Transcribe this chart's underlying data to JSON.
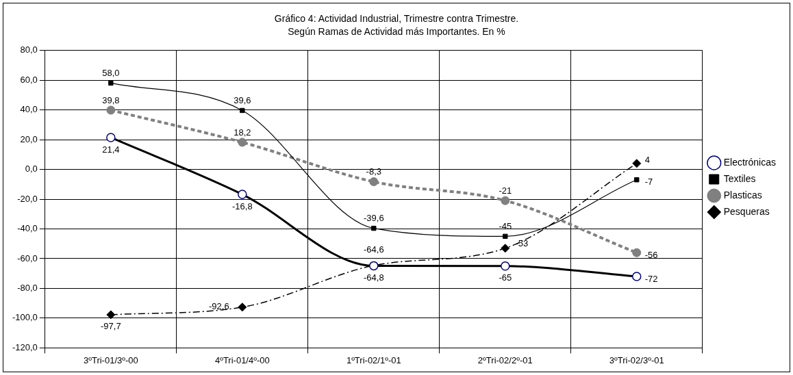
{
  "chart_data": {
    "type": "line",
    "title": "Gráfico 4: Actividad Industrial, Trimestre contra Trimestre.",
    "subtitle": "Según Ramas de Actividad más Importantes. En %",
    "categories": [
      "3ºTri-01/3º-00",
      "4ºTri-01/4º-00",
      "1ºTri-02/1º-01",
      "2ºTri-02/2º-01",
      "3ºTri-02/3º-01"
    ],
    "ylim": [
      -120,
      80
    ],
    "yticks": [
      {
        "value": -120,
        "label": "-120,0"
      },
      {
        "value": -100,
        "label": "-100,0"
      },
      {
        "value": -80,
        "label": "-80,0"
      },
      {
        "value": -60,
        "label": "-60,0"
      },
      {
        "value": -40,
        "label": "-40,0"
      },
      {
        "value": -20,
        "label": "-20,0"
      },
      {
        "value": 0,
        "label": "0,0"
      },
      {
        "value": 20,
        "label": "20,0"
      },
      {
        "value": 40,
        "label": "40,0"
      },
      {
        "value": 60,
        "label": "60,0"
      },
      {
        "value": 80,
        "label": "80,0"
      }
    ],
    "grid": true,
    "legend": "right",
    "series": [
      {
        "name": "Electrónicas",
        "color": "#000080",
        "marker": "circle",
        "line_style": "solid",
        "values": [
          21.4,
          -16.8,
          -64.8,
          -65,
          -72
        ],
        "value_labels": [
          "21,4",
          "-16,8",
          "-64,8",
          "-65",
          "-72"
        ]
      },
      {
        "name": "Textiles",
        "color": "#000000",
        "marker": "square",
        "line_style": "solid",
        "values": [
          58.0,
          39.6,
          -39.6,
          -45,
          -7
        ],
        "value_labels": [
          "58,0",
          "39,6",
          "-39,6",
          "-45",
          "-7"
        ]
      },
      {
        "name": "Plasticas",
        "color": "#808080",
        "marker": "circle",
        "line_style": "dashed",
        "values": [
          39.8,
          18.2,
          -8.3,
          -21,
          -56
        ],
        "value_labels": [
          "39,8",
          "18,2",
          "-8,3",
          "-21",
          "-56"
        ]
      },
      {
        "name": "Pesqueras",
        "color": "#000000",
        "marker": "diamond",
        "line_style": "dashdot",
        "values": [
          -97.7,
          -92.6,
          -64.6,
          -53,
          4
        ],
        "value_labels": [
          "-97,7",
          "-92,6",
          "-64,6",
          "-53",
          "4"
        ]
      }
    ]
  }
}
